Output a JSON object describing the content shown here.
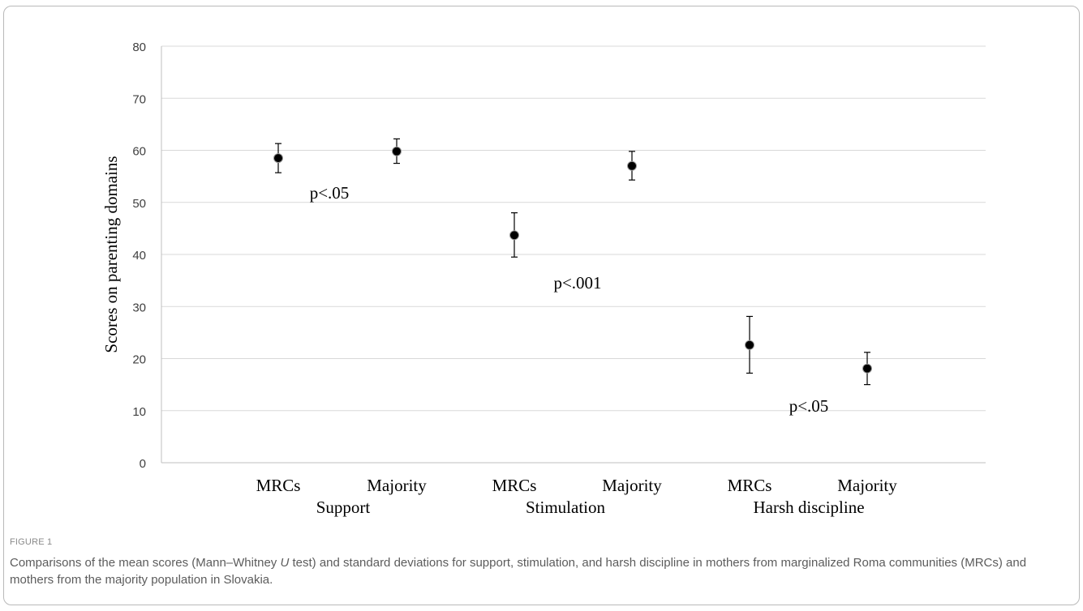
{
  "chart_data": {
    "type": "scatter",
    "ylabel": "Scores on parenting domains",
    "ylim": [
      0,
      80
    ],
    "yticks": [
      0,
      10,
      20,
      30,
      40,
      50,
      60,
      70,
      80
    ],
    "grid": true,
    "groups": [
      {
        "label": "Support",
        "significance": "p<.05",
        "points": [
          {
            "label": "MRCs",
            "mean": 58.5,
            "lower": 55.7,
            "upper": 61.3
          },
          {
            "label": "Majority",
            "mean": 59.8,
            "lower": 57.5,
            "upper": 62.2
          }
        ]
      },
      {
        "label": "Stimulation",
        "significance": "p<.001",
        "points": [
          {
            "label": "MRCs",
            "mean": 43.7,
            "lower": 39.5,
            "upper": 48.0
          },
          {
            "label": "Majority",
            "mean": 57.0,
            "lower": 54.3,
            "upper": 59.8
          }
        ]
      },
      {
        "label": "Harsh discipline",
        "significance": "p<.05",
        "points": [
          {
            "label": "MRCs",
            "mean": 22.6,
            "lower": 17.2,
            "upper": 28.1
          },
          {
            "label": "Majority",
            "mean": 18.1,
            "lower": 15.0,
            "upper": 21.2
          }
        ]
      }
    ]
  },
  "figure": {
    "label": "FIGURE 1",
    "caption_part1": "Comparisons of the mean scores (Mann–Whitney ",
    "caption_italic": "U",
    "caption_part2": " test) and standard deviations for support, stimulation, and harsh discipline in mothers from marginalized Roma communities (MRCs) and mothers from the majority population in Slovakia."
  }
}
